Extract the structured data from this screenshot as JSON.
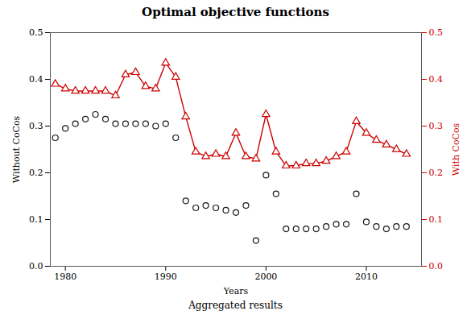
{
  "chart_data": {
    "type": "line",
    "title": "Optimal objective functions",
    "xlabel": "Years",
    "caption": "Aggregated results",
    "ylabel": "Without CoCos",
    "y2label": "With CoCos",
    "x": [
      1979,
      1980,
      1981,
      1982,
      1983,
      1984,
      1985,
      1986,
      1987,
      1988,
      1989,
      1990,
      1991,
      1992,
      1993,
      1994,
      1995,
      1996,
      1997,
      1998,
      1999,
      2000,
      2001,
      2002,
      2003,
      2004,
      2005,
      2006,
      2007,
      2008,
      2009,
      2010,
      2011,
      2012,
      2013,
      2014
    ],
    "xlim": [
      1978.5,
      2015.5
    ],
    "xticks": [
      1980,
      1990,
      2000,
      2010
    ],
    "ylim": [
      0.0,
      0.5
    ],
    "yticks": [
      {
        "value": 0,
        "label": "0.0"
      },
      0.1,
      0.2,
      0.3,
      0.4,
      0.5
    ],
    "y2lim": [
      0.0,
      0.5
    ],
    "y2ticks": [
      {
        "value": 0,
        "label": "0.0"
      },
      0.1,
      0.2,
      0.3,
      0.4,
      0.5
    ],
    "grid": false,
    "series": [
      {
        "name": "Without CoCos",
        "color": "#1a1a1a",
        "marker": "o",
        "line_style": "none",
        "values": [
          0.275,
          0.295,
          0.305,
          0.315,
          0.325,
          0.315,
          0.305,
          0.305,
          0.305,
          0.305,
          0.3,
          0.305,
          0.275,
          0.14,
          0.125,
          0.13,
          0.125,
          0.12,
          0.115,
          0.13,
          0.055,
          0.195,
          0.155,
          0.08,
          0.08,
          0.08,
          0.08,
          0.085,
          0.09,
          0.09,
          0.155,
          0.095,
          0.085,
          0.08,
          0.085,
          0.085
        ]
      },
      {
        "name": "With CoCos",
        "color": "#cc0000",
        "marker": "^",
        "line_style": "solid",
        "axis": "y2",
        "values": [
          0.39,
          0.38,
          0.375,
          0.375,
          0.375,
          0.375,
          0.365,
          0.41,
          0.415,
          0.385,
          0.38,
          0.435,
          0.405,
          0.32,
          0.245,
          0.235,
          0.24,
          0.235,
          0.285,
          0.235,
          0.23,
          0.325,
          0.245,
          0.215,
          0.215,
          0.22,
          0.22,
          0.225,
          0.235,
          0.245,
          0.31,
          0.285,
          0.27,
          0.26,
          0.25,
          0.24
        ]
      }
    ]
  }
}
